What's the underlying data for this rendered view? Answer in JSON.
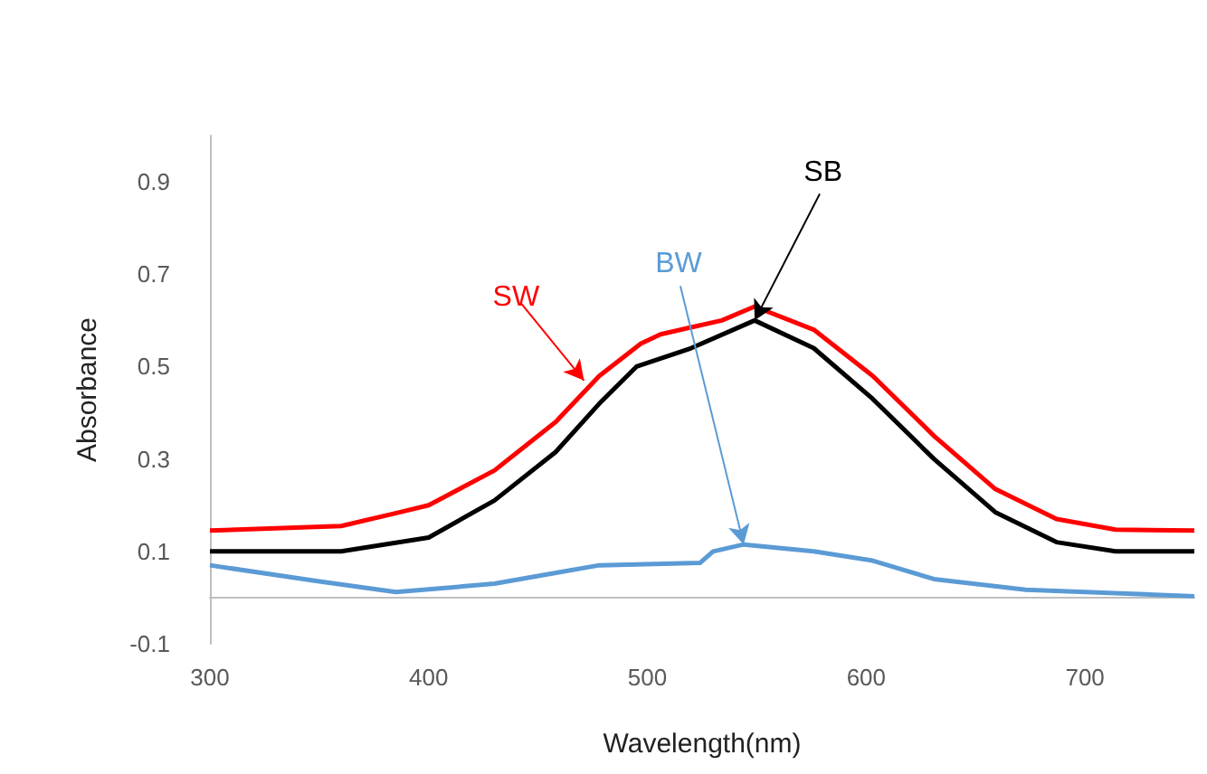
{
  "chart_data": {
    "type": "line",
    "xlabel": "Wavelength(nm)",
    "ylabel": "Absorbance",
    "xlim": [
      300,
      750
    ],
    "xticks": [
      300,
      400,
      500,
      600,
      700
    ],
    "ylim": [
      -0.1,
      1.0
    ],
    "yticks": [
      -0.1,
      0.1,
      0.3,
      0.5,
      0.7,
      0.9
    ],
    "grid": false,
    "marker": "none",
    "line_style": "solid",
    "series": [
      {
        "color": "#ff0000",
        "x": [
          300,
          360,
          387,
          400,
          430,
          458,
          478,
          497,
          506,
          520,
          534,
          549,
          576,
          603,
          631,
          659,
          687,
          714,
          750
        ],
        "values": [
          0.145,
          0.155,
          0.185,
          0.2,
          0.275,
          0.38,
          0.48,
          0.55,
          0.57,
          0.585,
          0.6,
          0.63,
          0.58,
          0.48,
          0.35,
          0.235,
          0.17,
          0.147,
          0.145
        ]
      },
      {
        "color": "#000000",
        "x": [
          300,
          360,
          400,
          430,
          458,
          478,
          495,
          520,
          549,
          576,
          603,
          631,
          659,
          687,
          714,
          750
        ],
        "values": [
          0.1,
          0.1,
          0.13,
          0.21,
          0.315,
          0.42,
          0.5,
          0.54,
          0.6,
          0.54,
          0.43,
          0.3,
          0.185,
          0.12,
          0.1,
          0.1
        ]
      },
      {
        "color": "#5b9bd5",
        "x": [
          300,
          350,
          385,
          430,
          460,
          478,
          524,
          530,
          544,
          576,
          603,
          631,
          673,
          750
        ],
        "values": [
          0.07,
          0.035,
          0.012,
          0.03,
          0.055,
          0.07,
          0.075,
          0.1,
          0.115,
          0.1,
          0.08,
          0.04,
          0.017,
          0.003
        ]
      }
    ],
    "annotations": [
      {
        "text": "SW",
        "x": 471,
        "y": 0.47
      },
      {
        "text": "SB",
        "x": 549,
        "y": 0.6
      },
      {
        "text": "BW",
        "x": 544,
        "y": 0.115
      }
    ]
  }
}
